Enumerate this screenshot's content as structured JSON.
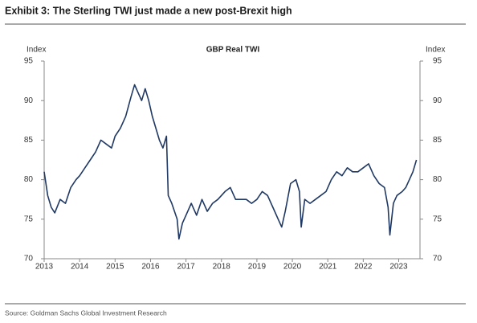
{
  "chart_data": {
    "type": "line",
    "title": "Exhibit 3: The Sterling TWI just made a new post-Brexit high",
    "subtitle": "GBP Real TWI",
    "ylabel": "Index",
    "y2label": "Index",
    "source": "Source: Goldman Sachs Global Investment Research",
    "xlim": [
      2013,
      2023.6
    ],
    "xticks": [
      2013,
      2014,
      2015,
      2016,
      2017,
      2018,
      2019,
      2020,
      2021,
      2022,
      2023
    ],
    "ylim": [
      70,
      95
    ],
    "yticks": [
      70,
      75,
      80,
      85,
      90,
      95
    ],
    "y2lim": [
      70,
      95
    ],
    "y2ticks": [
      70,
      75,
      80,
      85,
      90,
      95
    ],
    "grid": false,
    "x": [
      2013.0,
      2013.1,
      2013.2,
      2013.3,
      2013.45,
      2013.6,
      2013.75,
      2013.9,
      2014.0,
      2014.15,
      2014.3,
      2014.45,
      2014.6,
      2014.75,
      2014.9,
      2015.0,
      2015.15,
      2015.3,
      2015.45,
      2015.55,
      2015.65,
      2015.75,
      2015.85,
      2015.95,
      2016.05,
      2016.15,
      2016.25,
      2016.35,
      2016.45,
      2016.5,
      2016.6,
      2016.75,
      2016.8,
      2016.9,
      2017.0,
      2017.15,
      2017.3,
      2017.45,
      2017.6,
      2017.75,
      2017.9,
      2018.1,
      2018.25,
      2018.4,
      2018.55,
      2018.7,
      2018.85,
      2019.0,
      2019.15,
      2019.3,
      2019.45,
      2019.6,
      2019.7,
      2019.8,
      2019.95,
      2020.1,
      2020.2,
      2020.25,
      2020.35,
      2020.5,
      2020.65,
      2020.8,
      2020.95,
      2021.1,
      2021.25,
      2021.4,
      2021.55,
      2021.7,
      2021.85,
      2022.0,
      2022.15,
      2022.3,
      2022.45,
      2022.6,
      2022.7,
      2022.75,
      2022.85,
      2022.95,
      2023.1,
      2023.2,
      2023.3,
      2023.4,
      2023.5
    ],
    "series": [
      {
        "name": "GBP Real TWI",
        "color": "#1f3864",
        "values": [
          81,
          78,
          76.5,
          75.8,
          77.5,
          77,
          79,
          80,
          80.5,
          81.5,
          82.5,
          83.5,
          85,
          84.5,
          84,
          85.5,
          86.5,
          88,
          90.5,
          92,
          91,
          90,
          91.5,
          90,
          88,
          86.5,
          85,
          84,
          85.5,
          78,
          77,
          75,
          72.5,
          74.5,
          75.5,
          77,
          75.5,
          77.5,
          76,
          77,
          77.5,
          78.5,
          79,
          77.5,
          77.5,
          77.5,
          77,
          77.5,
          78.5,
          78,
          76.5,
          75,
          74,
          76,
          79.5,
          80,
          78.5,
          74,
          77.5,
          77,
          77.5,
          78,
          78.5,
          80,
          81,
          80.5,
          81.5,
          81,
          81,
          81.5,
          82,
          80.5,
          79.5,
          79,
          76.5,
          73,
          77,
          78,
          78.5,
          79,
          80,
          81,
          82.5
        ]
      }
    ]
  }
}
